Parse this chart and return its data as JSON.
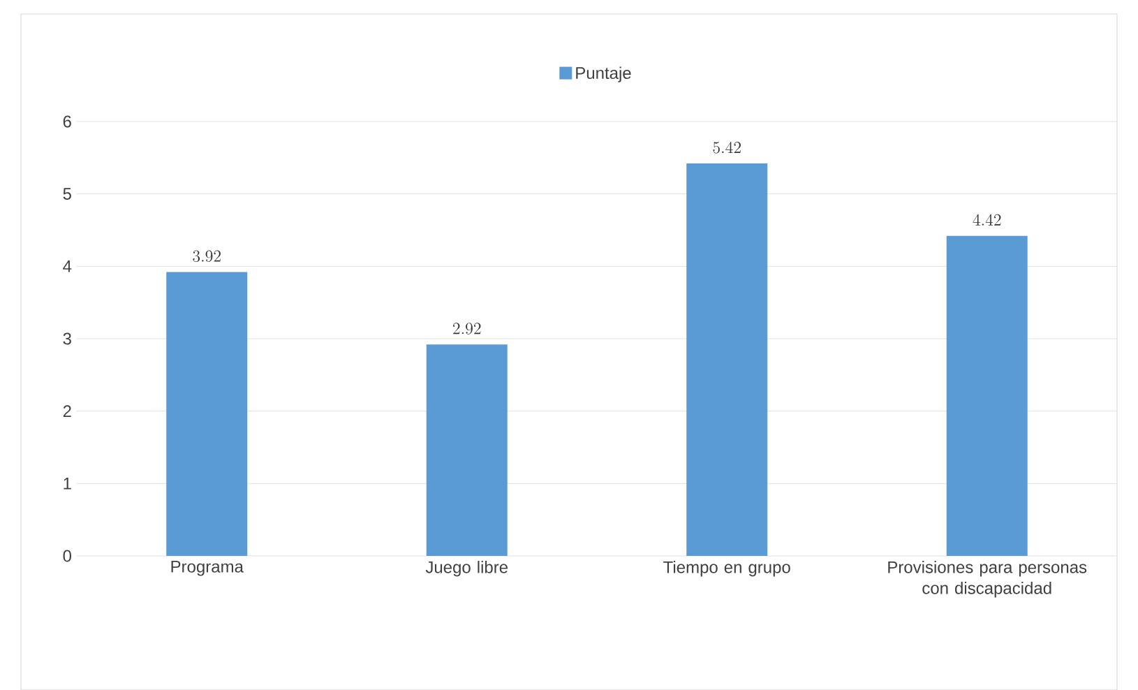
{
  "chart_data": {
    "type": "bar",
    "categories": [
      "Programa",
      "Juego libre",
      "Tiempo en grupo",
      "Provisiones para personas con discapacidad"
    ],
    "series": [
      {
        "name": "Puntaje",
        "color": "#5b9bd5",
        "values": [
          3.92,
          2.92,
          5.42,
          4.42
        ]
      }
    ],
    "ylim": [
      0,
      6
    ],
    "yticks": [
      0,
      1,
      2,
      3,
      4,
      5,
      6
    ],
    "grid": "y",
    "legend": "top",
    "data_labels": true
  }
}
